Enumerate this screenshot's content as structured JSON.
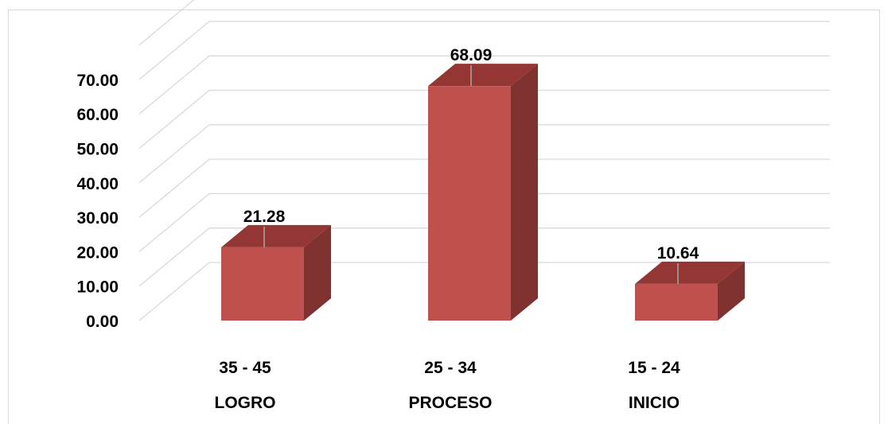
{
  "chart_data": {
    "type": "bar",
    "style": "3d-column",
    "categories": [
      {
        "range": "35 - 45",
        "level": "LOGRO"
      },
      {
        "range": "25 - 34",
        "level": "PROCESO"
      },
      {
        "range": "15 - 24",
        "level": "INICIO"
      }
    ],
    "values": [
      21.28,
      68.09,
      10.64
    ],
    "value_labels": [
      "21.28",
      "68.09",
      "10.64"
    ],
    "y_ticks": [
      "0.00",
      "10.00",
      "20.00",
      "30.00",
      "40.00",
      "50.00",
      "60.00",
      "70.00"
    ],
    "ylim": [
      0,
      80
    ],
    "grid": true,
    "legend": "none",
    "colors": {
      "front": "#c0504d",
      "top": "#943634",
      "side": "#7f3230",
      "grid": "#d9d9d9"
    }
  }
}
